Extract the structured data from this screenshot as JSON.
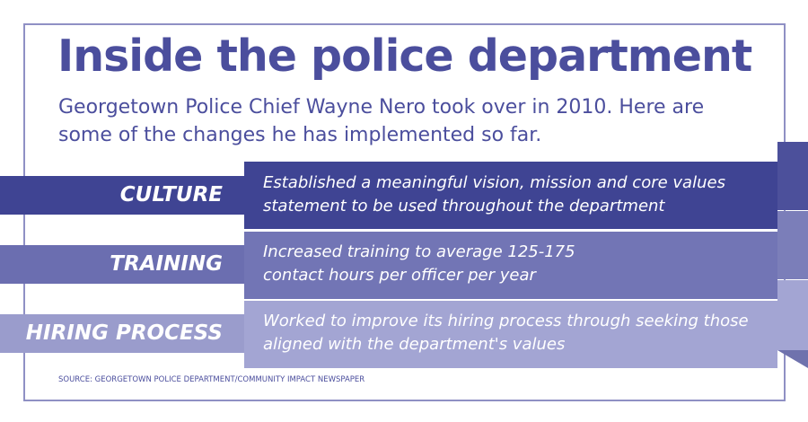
{
  "header": {
    "title": "Inside the police department",
    "subtitle": "Georgetown Police Chief Wayne Nero took over in 2010. Here are some of the changes he has implemented so far."
  },
  "rows": [
    {
      "label": "CULTURE",
      "text": "Established a meaningful vision, mission and core values statement to be used throughout the department"
    },
    {
      "label": "TRAINING",
      "text": "Increased training to average 125-175 contact hours per officer per year"
    },
    {
      "label": "HIRING PROCESS",
      "text": "Worked to improve its hiring process through seeking those aligned with the department's values"
    }
  ],
  "source": "SOURCE: GEORGETOWN POLICE DEPARTMENT/COMMUNITY IMPACT NEWSPAPER"
}
